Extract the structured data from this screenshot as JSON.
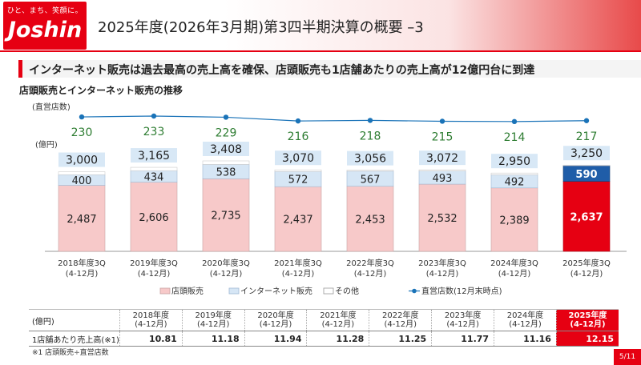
{
  "header": {
    "logo_tagline": "ひと、まち、笑顔に。",
    "logo_name": "Joshin",
    "title": "2025年度(2026年3月期)第3四半期決算の概要 –3"
  },
  "headline": "インターネット販売は過去最高の売上高を確保、店頭販売も1店舗あたりの売上高が12億円台に到達",
  "subtitle": "店頭販売とインターネット販売の推移",
  "labels": {
    "stores_unit": "(直営店数)",
    "sales_unit": "(億円)"
  },
  "colors": {
    "store_sales": "#f7c9c9",
    "store_sales_highlight": "#e60012",
    "internet_sales": "#d6e6f5",
    "internet_sales_highlight": "#1f5da8",
    "line": "#1a73b8",
    "store_count_text": "#2e7d32"
  },
  "chart_data": {
    "type": "bar",
    "stacked": true,
    "categories": [
      "2018年度3Q",
      "2019年度3Q",
      "2020年度3Q",
      "2021年度3Q",
      "2022年度3Q",
      "2023年度3Q",
      "2024年度3Q",
      "2025年度3Q"
    ],
    "category_sub": [
      "(4-12月)",
      "(4-12月)",
      "(4-12月)",
      "(4-12月)",
      "(4-12月)",
      "(4-12月)",
      "(4-12月)",
      "(4-12月)"
    ],
    "series": [
      {
        "name": "店頭販売",
        "values": [
          2487,
          2606,
          2735,
          2437,
          2453,
          2532,
          2389,
          2637
        ]
      },
      {
        "name": "インターネット販売",
        "values": [
          400,
          434,
          538,
          572,
          567,
          493,
          492,
          590
        ]
      },
      {
        "name": "その他",
        "values": [
          113,
          125,
          135,
          61,
          36,
          47,
          69,
          23
        ]
      }
    ],
    "totals": [
      3000,
      3165,
      3408,
      3070,
      3056,
      3072,
      2950,
      3250
    ],
    "totals_labels": [
      "3,000",
      "3,165",
      "3,408",
      "3,070",
      "3,056",
      "3,072",
      "2,950",
      "3,250"
    ],
    "store_sales_labels": [
      "2,487",
      "2,606",
      "2,735",
      "2,437",
      "2,453",
      "2,532",
      "2,389",
      "2,637"
    ],
    "line_series": {
      "name": "直営店数(12月末時点)",
      "values": [
        230,
        233,
        229,
        216,
        218,
        215,
        214,
        217
      ]
    },
    "highlight_index": 7,
    "legend": [
      "店頭販売",
      "インターネット販売",
      "その他",
      "直営店数(12月末時点)"
    ],
    "ylabel": "(億円)",
    "ylim": [
      0,
      3500
    ]
  },
  "table": {
    "unit": "(億円)",
    "headers": [
      "2018年度",
      "2019年度",
      "2020年度",
      "2021年度",
      "2022年度",
      "2023年度",
      "2024年度",
      "2025年度"
    ],
    "subheaders": [
      "(4-12月)",
      "(4-12月)",
      "(4-12月)",
      "(4-12月)",
      "(4-12月)",
      "(4-12月)",
      "(4-12月)",
      "(4-12月)"
    ],
    "row_label": "1店舗あたり売上高(※1)",
    "values": [
      "10.81",
      "11.18",
      "11.94",
      "11.28",
      "11.25",
      "11.77",
      "11.16",
      "12.15"
    ]
  },
  "footnote": "※1 店頭販売÷直営店数",
  "page": "5/11"
}
